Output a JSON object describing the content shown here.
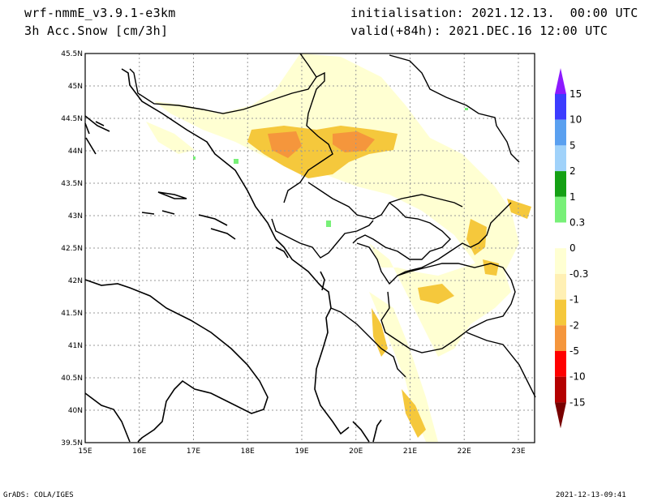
{
  "header": {
    "model": "wrf-nmmE_v3.9.1-e3km",
    "variable": "3h Acc.Snow [cm/3h]",
    "initialisation": "initialisation: 2021.12.13.  00:00 UTC",
    "valid": "valid(+84h): 2021.DEC.16 12:00 UTC"
  },
  "footer": {
    "left": "GrADS: COLA/IGES",
    "right": "2021-12-13-09:41"
  },
  "map": {
    "lon_range": [
      15,
      23.3
    ],
    "lat_range": [
      39.5,
      45.5
    ],
    "lon_ticks": [
      "15E",
      "16E",
      "17E",
      "18E",
      "19E",
      "20E",
      "21E",
      "22E",
      "23E"
    ],
    "lat_ticks": [
      "45.5N",
      "45N",
      "44.5N",
      "44N",
      "43.5N",
      "43N",
      "42.5N",
      "42N",
      "41.5N",
      "41N",
      "40.5N",
      "40N",
      "39.5N"
    ]
  },
  "colorbar": {
    "labels": [
      "15",
      "10",
      "5",
      "2",
      "1",
      "0.3",
      "0",
      "-0.3",
      "-1",
      "-2",
      "-5",
      "-10",
      "-15"
    ],
    "colors": [
      "#8c1aff",
      "#3c3cff",
      "#5aa0f0",
      "#a0d2fa",
      "#14a014",
      "#78f078",
      "#ffffff",
      "#ffffd2",
      "#fff0b4",
      "#f5c83c",
      "#f5963c",
      "#ff0000",
      "#b40000",
      "#780000"
    ]
  }
}
